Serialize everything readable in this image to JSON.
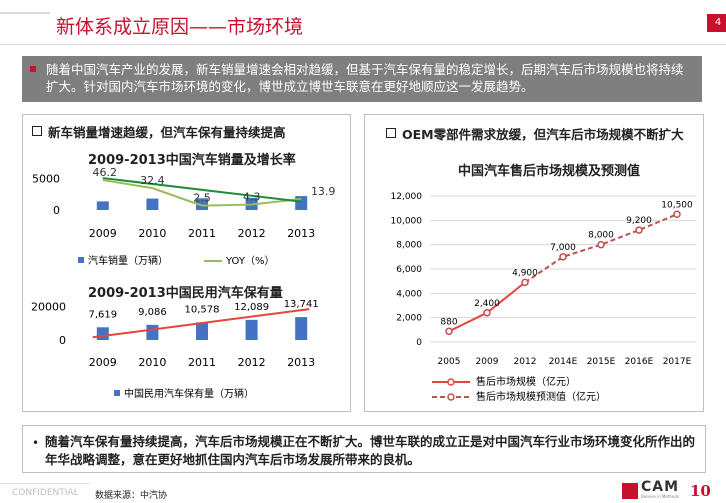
{
  "header": {
    "title": "新体系成立原因——市场环境",
    "page_number": "4"
  },
  "intro": {
    "text": "随着中国汽车产业的发展，新车销量增速会相对趋缓，但基于汽车保有量的稳定增长，后期汽车后市场规模也将持续扩大。针对国内汽车市场环境的变化，博世成立博世车联意在更好地顺应这一发展趋势。"
  },
  "left_panel": {
    "heading": "新车销量增速趋缓，但汽车保有量持续提高"
  },
  "right_panel": {
    "heading": "OEM零部件需求放缓，但汽车后市场规模不断扩大"
  },
  "chart_data": [
    {
      "type": "bar",
      "title": "2009-2013中国汽车销量及增长率",
      "categories": [
        "2009",
        "2010",
        "2011",
        "2012",
        "2013"
      ],
      "series": [
        {
          "name": "汽车销量（万辆）",
          "type": "bar",
          "values": [
            1364,
            1806,
            1851,
            1931,
            2198
          ],
          "color": "#4472c4"
        },
        {
          "name": "YOY（%）",
          "type": "line",
          "values": [
            46.2,
            32.4,
            2.5,
            4.3,
            13.9
          ],
          "color": "#9bbb59"
        }
      ],
      "ytick_labels": [
        "0",
        "5000"
      ],
      "ylim": [
        0,
        6000
      ],
      "y2lim": [
        -5,
        60
      ],
      "trend_color": "#1e8c3a"
    },
    {
      "type": "bar",
      "title": "2009-2013中国民用汽车保有量",
      "categories": [
        "2009",
        "2010",
        "2011",
        "2012",
        "2013"
      ],
      "series": [
        {
          "name": "中国民用汽车保有量（万辆）",
          "values": [
            7619,
            9086,
            10578,
            12089,
            13741
          ],
          "color": "#4472c4"
        }
      ],
      "data_labels": [
        "7,619",
        "9,086",
        "10,578",
        "12,089",
        "13,741"
      ],
      "ytick_labels": [
        "0",
        "20000"
      ],
      "ylim": [
        0,
        24000
      ],
      "trend_color": "#e8443a"
    },
    {
      "type": "line",
      "title": "中国汽车售后市场规模及预测值",
      "categories": [
        "2005",
        "2009",
        "2012",
        "2014E",
        "2015E",
        "2016E",
        "2017E"
      ],
      "series": [
        {
          "name": "售后市场规模（亿元）",
          "values": [
            880,
            2400,
            4900,
            null,
            null,
            null,
            null
          ],
          "color": "#e8443a",
          "style": "solid"
        },
        {
          "name": "售后市场规模预测值（亿元）",
          "values": [
            null,
            null,
            4900,
            7000,
            8000,
            9200,
            10500
          ],
          "color": "#c0504d",
          "style": "dashed"
        }
      ],
      "data_labels": [
        "880",
        "2,400",
        "4,900",
        "7,000",
        "8,000",
        "9,200",
        "10,500"
      ],
      "ytick_labels": [
        "0",
        "2,000",
        "4,000",
        "6,000",
        "8,000",
        "10,000",
        "12,000"
      ],
      "ylim": [
        0,
        12000
      ]
    }
  ],
  "bottom": {
    "text": "随着汽车保有量持续提高，汽车后市场规模正在不断扩大。博世车联的成立正是对中国汽车行业市场环境变化所作出的年华战略调整，意在更好地抓住国内汽车后市场发展所带来的良机。"
  },
  "footer": {
    "confidential": "CONFIDENTIAL",
    "source": "数据来源：中汽协",
    "logo": "CAM",
    "logo_sub": "Believe in Methods",
    "anniversary": "10"
  }
}
